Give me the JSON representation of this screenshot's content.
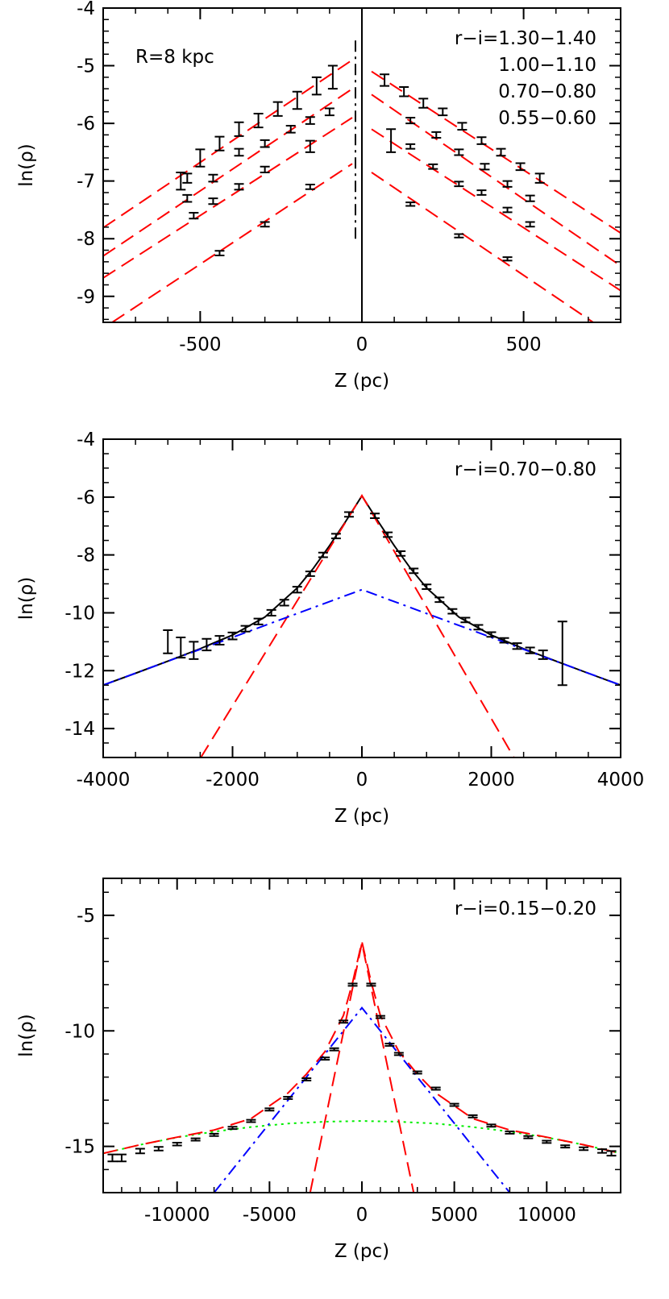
{
  "chart_data": [
    {
      "type": "scatter",
      "annotation": "R=8 kpc",
      "xlabel": "Z (pc)",
      "ylabel": "ln(ρ)",
      "xlim": [
        -800,
        800
      ],
      "ylim": [
        -9.45,
        -4
      ],
      "xticks": [
        -500,
        0,
        500
      ],
      "yticks": [
        -4,
        -5,
        -6,
        -7,
        -8,
        -9
      ],
      "xminor_step": 100,
      "yminor_step": 0.2,
      "series": [
        {
          "name": "r−i=1.30−1.40",
          "color": "#000000",
          "x": [
            -560,
            -500,
            -440,
            -380,
            -320,
            -260,
            -200,
            -140,
            -90,
            70,
            130,
            190,
            250,
            310,
            370,
            430,
            490,
            550
          ],
          "values": [
            -7.0,
            -6.6,
            -6.35,
            -6.1,
            -5.95,
            -5.75,
            -5.6,
            -5.35,
            -5.2,
            -5.25,
            -5.45,
            -5.65,
            -5.8,
            -6.05,
            -6.3,
            -6.5,
            -6.75,
            -6.95
          ],
          "errors": [
            0.15,
            0.15,
            0.12,
            0.12,
            0.12,
            0.12,
            0.15,
            0.15,
            0.2,
            0.1,
            0.08,
            0.08,
            0.06,
            0.06,
            0.06,
            0.06,
            0.06,
            0.08
          ]
        },
        {
          "name": "1.00−1.10",
          "color": "#000000",
          "x": [
            -540,
            -460,
            -380,
            -300,
            -220,
            -160,
            -100,
            90,
            150,
            230,
            300,
            380,
            450,
            520
          ],
          "values": [
            -6.95,
            -6.95,
            -6.5,
            -6.35,
            -6.1,
            -5.95,
            -5.8,
            -6.3,
            -5.95,
            -6.2,
            -6.5,
            -6.75,
            -7.05,
            -7.3
          ],
          "errors": [
            0.08,
            0.06,
            0.06,
            0.06,
            0.06,
            0.06,
            0.06,
            0.2,
            0.05,
            0.05,
            0.05,
            0.05,
            0.05,
            0.05
          ]
        },
        {
          "name": "0.70−0.80",
          "color": "#000000",
          "x": [
            -540,
            -460,
            -380,
            -300,
            -160,
            150,
            220,
            300,
            370,
            450,
            520
          ],
          "values": [
            -7.3,
            -7.35,
            -7.1,
            -6.8,
            -6.4,
            -6.4,
            -6.75,
            -7.05,
            -7.2,
            -7.5,
            -7.75
          ],
          "errors": [
            0.06,
            0.05,
            0.05,
            0.05,
            0.1,
            0.04,
            0.04,
            0.04,
            0.04,
            0.04,
            0.04
          ]
        },
        {
          "name": "0.55−0.60",
          "color": "#000000",
          "x": [
            -520,
            -440,
            -300,
            -160,
            150,
            300,
            450
          ],
          "values": [
            -7.6,
            -8.25,
            -7.75,
            -7.1,
            -7.4,
            -7.95,
            -8.35
          ],
          "errors": [
            0.05,
            0.04,
            0.04,
            0.04,
            0.03,
            0.03,
            0.03
          ]
        }
      ],
      "models": [
        {
          "color": "#ff0000",
          "style": "dashed",
          "x": [
            -800,
            -30
          ],
          "values": [
            -7.81,
            -4.9
          ]
        },
        {
          "color": "#ff0000",
          "style": "dashed",
          "x": [
            30,
            800
          ],
          "values": [
            -5.1,
            -7.9
          ]
        },
        {
          "color": "#ff0000",
          "style": "dashed",
          "x": [
            -800,
            -30
          ],
          "values": [
            -8.3,
            -5.4
          ]
        },
        {
          "color": "#ff0000",
          "style": "dashed",
          "x": [
            30,
            800
          ],
          "values": [
            -5.5,
            -8.47
          ]
        },
        {
          "color": "#ff0000",
          "style": "dashed",
          "x": [
            -800,
            -30
          ],
          "values": [
            -8.68,
            -5.9
          ]
        },
        {
          "color": "#ff0000",
          "style": "dashed",
          "x": [
            30,
            800
          ],
          "values": [
            -6.1,
            -8.9
          ]
        },
        {
          "color": "#ff0000",
          "style": "dashed",
          "x": [
            -772,
            -30
          ],
          "values": [
            -9.45,
            -6.7
          ]
        },
        {
          "color": "#ff0000",
          "style": "dashed",
          "x": [
            30,
            715
          ],
          "values": [
            -6.85,
            -9.45
          ]
        },
        {
          "color": "#000000",
          "style": "solid",
          "x": [
            0,
            0
          ],
          "values": [
            -9.45,
            -4
          ]
        },
        {
          "color": "#000000",
          "style": "dashdot",
          "x": [
            -20,
            -20
          ],
          "values": [
            -8.0,
            -4.5
          ]
        }
      ]
    },
    {
      "type": "scatter",
      "xlabel": "Z (pc)",
      "ylabel": "ln(ρ)",
      "xlim": [
        -4000,
        4000
      ],
      "ylim": [
        -15,
        -4
      ],
      "xticks": [
        -4000,
        -2000,
        0,
        2000,
        4000
      ],
      "yticks": [
        -4,
        -6,
        -8,
        -10,
        -12,
        -14
      ],
      "xminor_step": 500,
      "yminor_step": 0.5,
      "series": [
        {
          "name": "r−i=0.70−0.80",
          "color": "#000000",
          "x": [
            -3000,
            -2800,
            -2600,
            -2400,
            -2200,
            -2000,
            -1800,
            -1600,
            -1400,
            -1200,
            -1000,
            -800,
            -600,
            -400,
            -200,
            200,
            400,
            600,
            800,
            1000,
            1200,
            1400,
            1600,
            1800,
            2000,
            2200,
            2400,
            2600,
            2800,
            3100
          ],
          "values": [
            -11.0,
            -11.2,
            -11.3,
            -11.1,
            -10.95,
            -10.8,
            -10.55,
            -10.3,
            -10.0,
            -9.65,
            -9.2,
            -8.65,
            -8.0,
            -7.35,
            -6.6,
            -6.65,
            -7.3,
            -7.95,
            -8.55,
            -9.1,
            -9.55,
            -9.95,
            -10.25,
            -10.5,
            -10.75,
            -10.95,
            -11.15,
            -11.3,
            -11.45,
            -11.4
          ],
          "errors": [
            0.4,
            0.35,
            0.3,
            0.2,
            0.15,
            0.12,
            0.1,
            0.1,
            0.1,
            0.1,
            0.1,
            0.08,
            0.08,
            0.08,
            0.08,
            0.08,
            0.08,
            0.08,
            0.08,
            0.08,
            0.08,
            0.08,
            0.08,
            0.08,
            0.08,
            0.08,
            0.1,
            0.1,
            0.15,
            1.1
          ]
        }
      ],
      "models": [
        {
          "color": "#000000",
          "style": "solid",
          "x": [
            -4000,
            -3500,
            -3000,
            -2500,
            -2000,
            -1500,
            -1000,
            -750,
            -500,
            -250,
            0,
            250,
            500,
            750,
            1000,
            1500,
            2000,
            2500,
            3000,
            3500,
            4000
          ],
          "values": [
            -12.5,
            -12.09,
            -11.67,
            -11.24,
            -10.77,
            -10.15,
            -9.14,
            -8.46,
            -7.68,
            -6.84,
            -5.96,
            -6.84,
            -7.68,
            -8.46,
            -9.14,
            -10.15,
            -10.77,
            -11.24,
            -11.67,
            -12.09,
            -12.5
          ]
        },
        {
          "color": "#ff0000",
          "style": "dashed",
          "x": [
            -2490,
            0,
            2350
          ],
          "values": [
            -15,
            -5.95,
            -15
          ]
        },
        {
          "color": "#0000ff",
          "style": "dashdot",
          "x": [
            -4000,
            0,
            4000
          ],
          "values": [
            -12.5,
            -9.2,
            -12.5
          ]
        }
      ]
    },
    {
      "type": "scatter",
      "xlabel": "Z (pc)",
      "ylabel": "ln(ρ)",
      "xlim": [
        -14000,
        14000
      ],
      "ylim": [
        -17,
        -3.4
      ],
      "xticks": [
        -10000,
        -5000,
        0,
        5000,
        10000
      ],
      "yticks": [
        -5,
        -10,
        -15
      ],
      "xminor_step": 1000,
      "yminor_step": 1,
      "series": [
        {
          "name": "r−i=0.15−0.20",
          "color": "#000000",
          "x": [
            -13500,
            -13000,
            -12000,
            -11000,
            -10000,
            -9000,
            -8000,
            -7000,
            -6000,
            -5000,
            -4000,
            -3000,
            -2000,
            -1500,
            -1000,
            -500,
            500,
            1000,
            1500,
            2000,
            3000,
            4000,
            5000,
            6000,
            7000,
            8000,
            9000,
            10000,
            11000,
            12000,
            13000,
            13500
          ],
          "values": [
            -15.5,
            -15.5,
            -15.2,
            -15.1,
            -14.9,
            -14.7,
            -14.5,
            -14.2,
            -13.9,
            -13.4,
            -12.9,
            -12.1,
            -11.2,
            -10.8,
            -9.6,
            -8.0,
            -8.0,
            -9.4,
            -10.6,
            -11.0,
            -11.8,
            -12.5,
            -13.2,
            -13.7,
            -14.1,
            -14.4,
            -14.6,
            -14.8,
            -15.0,
            -15.1,
            -15.2,
            -15.3
          ],
          "errors": [
            0.15,
            0.15,
            0.1,
            0.08,
            0.06,
            0.05,
            0.05,
            0.05,
            0.05,
            0.05,
            0.05,
            0.05,
            0.05,
            0.05,
            0.05,
            0.05,
            0.05,
            0.05,
            0.05,
            0.05,
            0.05,
            0.05,
            0.05,
            0.05,
            0.05,
            0.05,
            0.05,
            0.05,
            0.05,
            0.06,
            0.08,
            0.1
          ]
        }
      ],
      "models": [
        {
          "color": "#00ee00",
          "style": "dotted",
          "x": [
            -14000,
            -12000,
            -10000,
            -8000,
            -6000,
            -4000,
            -2000,
            0,
            2000,
            4000,
            6000,
            8000,
            10000,
            12000,
            14000
          ],
          "values": [
            -15.3,
            -14.93,
            -14.61,
            -14.36,
            -14.16,
            -14.01,
            -13.93,
            -13.9,
            -13.93,
            -14.01,
            -14.16,
            -14.36,
            -14.61,
            -14.93,
            -15.3
          ]
        },
        {
          "color": "#0000ff",
          "style": "dashdot",
          "x": [
            -8000,
            0,
            8000
          ],
          "values": [
            -17,
            -9,
            -17
          ]
        },
        {
          "color": "#ff0000",
          "style": "dashed",
          "x": [
            -2800,
            0,
            2800
          ],
          "values": [
            -17,
            -6.2,
            -17
          ]
        },
        {
          "color": "#ff0000",
          "style": "dashed",
          "x": [
            -14000,
            -12000,
            -10000,
            -8000,
            -6000,
            -4000,
            -3000,
            -2000,
            -1000,
            -500,
            0,
            500,
            1000,
            2000,
            3000,
            4000,
            6000,
            8000,
            10000,
            12000,
            14000
          ],
          "values": [
            -15.3,
            -14.93,
            -14.6,
            -14.29,
            -13.8,
            -12.69,
            -11.87,
            -10.9,
            -9.33,
            -7.9,
            -6.14,
            -7.9,
            -9.33,
            -10.9,
            -11.87,
            -12.69,
            -13.8,
            -14.29,
            -14.6,
            -14.93,
            -15.3
          ]
        }
      ]
    }
  ]
}
